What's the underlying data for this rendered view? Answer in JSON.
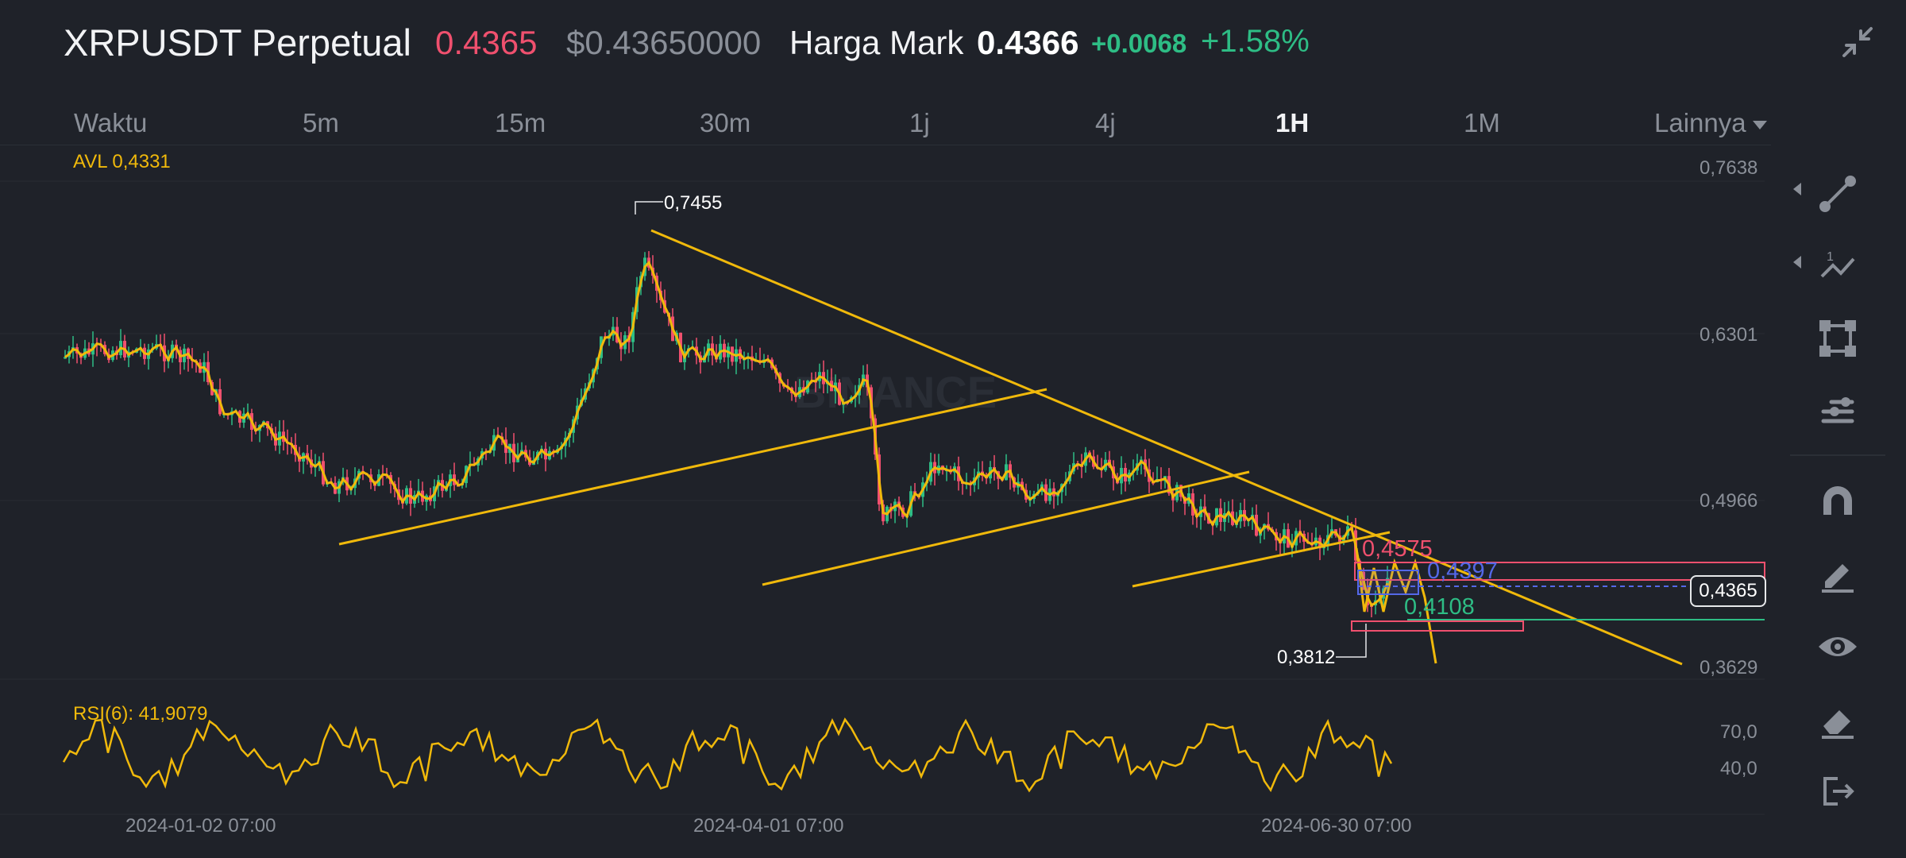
{
  "header": {
    "symbol": "XRPUSDT Perpetual",
    "last_price": "0.4365",
    "usd_price": "$0.43650000",
    "mark_label": "Harga Mark",
    "mark_price": "0.4366",
    "change": "+0.0068",
    "change_pct": "+1.58%"
  },
  "timeframes": [
    {
      "label": "Waktu",
      "active": false
    },
    {
      "label": "5m",
      "active": false
    },
    {
      "label": "15m",
      "active": false
    },
    {
      "label": "30m",
      "active": false
    },
    {
      "label": "1j",
      "active": false
    },
    {
      "label": "4j",
      "active": false
    },
    {
      "label": "1H",
      "active": true
    },
    {
      "label": "1M",
      "active": false
    },
    {
      "label": "Lainnya",
      "active": false
    }
  ],
  "chart": {
    "avl_label": "AVL 0,4331",
    "y_axis": [
      "0,7638",
      "0,6301",
      "0,4966",
      "0,3629"
    ],
    "high_label": "0,7455",
    "low_label": "0,3812",
    "level_red": "0,4575",
    "level_blue": "0,4397",
    "level_green": "0,4108",
    "current_price_tag": "0,4365",
    "watermark": "BINANCE",
    "x_axis": [
      "2024-01-02 07:00",
      "2024-04-01 07:00",
      "2024-06-30 07:00"
    ]
  },
  "rsi": {
    "label": "RSI(6): 41,9079",
    "levels": [
      "70,0",
      "40,0"
    ]
  },
  "colors": {
    "up": "#2ebd85",
    "down": "#f0506e",
    "accent": "#f0b90b",
    "blue": "#5468e8"
  },
  "tools": [
    "trend-line-icon",
    "fibonacci-icon",
    "rectangle-icon",
    "indicator-icon",
    "magnet-icon",
    "pencil-icon",
    "eye-icon",
    "eraser-icon",
    "exit-icon"
  ]
}
